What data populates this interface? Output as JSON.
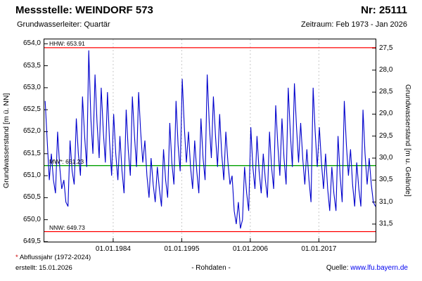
{
  "header": {
    "station_label": "Messstelle: WEINDORF 573",
    "number_label": "Nr: 25111",
    "aquifer_label": "Grundwasserleiter: Quartär",
    "period_label": "Zeitraum: Feb 1973 - Jan 2026"
  },
  "footer": {
    "footnote_star": "*",
    "footnote_text": " Abflussjahr (1972-2024)",
    "created_label": "erstellt: 15.01.2026",
    "center_label": "- Rohdaten -",
    "source_label": "Quelle: ",
    "source_url": "www.lfu.bayern.de"
  },
  "chart_data": {
    "type": "line",
    "title": "",
    "ylabel_left": "Grundwasserstand [m ü. NN]",
    "ylabel_right": "Grundwasserstand [m u. Gelände]",
    "x_range": [
      1972.95,
      2026.1
    ],
    "y_left_range": [
      649.5,
      654.1
    ],
    "right_axis_offset": 681.4,
    "grid": "vertical-only",
    "legend": "none",
    "y_left_ticks": [
      {
        "v": 654.0,
        "label": "654,0"
      },
      {
        "v": 653.5,
        "label": "653,5"
      },
      {
        "v": 653.0,
        "label": "653,0"
      },
      {
        "v": 652.5,
        "label": "652,5"
      },
      {
        "v": 652.0,
        "label": "652,0"
      },
      {
        "v": 651.5,
        "label": "651,5"
      },
      {
        "v": 651.0,
        "label": "651,0"
      },
      {
        "v": 650.5,
        "label": "650,5"
      },
      {
        "v": 650.0,
        "label": "650,0"
      },
      {
        "v": 649.5,
        "label": "649,5"
      }
    ],
    "y_right_ticks": [
      {
        "v": 27.5,
        "label": "27,5"
      },
      {
        "v": 28.0,
        "label": "28,0"
      },
      {
        "v": 28.5,
        "label": "28,5"
      },
      {
        "v": 29.0,
        "label": "29,0"
      },
      {
        "v": 29.5,
        "label": "29,5"
      },
      {
        "v": 30.0,
        "label": "30,0"
      },
      {
        "v": 30.5,
        "label": "30,5"
      },
      {
        "v": 31.0,
        "label": "31,0"
      },
      {
        "v": 31.5,
        "label": "31,5"
      }
    ],
    "x_ticks": [
      {
        "v": 1984.0,
        "label": "01.01.1984"
      },
      {
        "v": 1995.0,
        "label": "01.01.1995"
      },
      {
        "v": 2006.0,
        "label": "01.01.2006"
      },
      {
        "v": 2017.0,
        "label": "01.01.2017"
      }
    ],
    "reference_lines": [
      {
        "name": "HHW",
        "label": "HHW: 653.91",
        "value": 653.91,
        "color": "#ff0000"
      },
      {
        "name": "MW",
        "label": "MW*: 651.23",
        "value": 651.23,
        "color": "#00a000"
      },
      {
        "name": "NNW",
        "label": "NNW: 649.73",
        "value": 649.73,
        "color": "#ff0000"
      }
    ],
    "series": [
      {
        "name": "Grundwasserstand Rohdaten",
        "color": "#0000cc",
        "x_start": 1973.083,
        "x_step": 0.3333,
        "values": [
          652.7,
          651.8,
          650.9,
          651.5,
          650.9,
          650.6,
          652.0,
          651.2,
          650.7,
          650.9,
          650.4,
          650.3,
          651.8,
          651.1,
          650.8,
          652.3,
          651.5,
          651.0,
          652.8,
          651.9,
          651.2,
          653.85,
          652.3,
          651.5,
          653.3,
          652.2,
          651.4,
          653.0,
          652.0,
          651.3,
          652.9,
          651.8,
          651.0,
          652.4,
          651.5,
          650.9,
          651.9,
          651.1,
          650.6,
          652.5,
          651.6,
          651.0,
          652.8,
          651.9,
          651.2,
          652.9,
          652.0,
          651.3,
          651.8,
          651.0,
          650.5,
          651.4,
          650.8,
          650.4,
          651.2,
          650.7,
          650.3,
          651.6,
          650.9,
          650.5,
          652.2,
          651.3,
          650.8,
          652.7,
          651.7,
          651.1,
          653.2,
          652.1,
          651.3,
          652.0,
          651.2,
          650.7,
          651.8,
          651.1,
          650.6,
          652.3,
          651.4,
          650.9,
          653.3,
          652.2,
          651.4,
          652.8,
          651.9,
          651.2,
          652.4,
          651.5,
          650.9,
          652.0,
          651.3,
          650.8,
          651.0,
          650.2,
          649.9,
          650.4,
          649.8,
          650.0,
          651.2,
          650.6,
          650.2,
          652.1,
          651.2,
          650.7,
          651.9,
          651.1,
          650.6,
          651.5,
          650.9,
          650.5,
          652.0,
          651.2,
          650.7,
          652.6,
          651.7,
          651.0,
          652.3,
          651.4,
          650.8,
          653.0,
          652.0,
          651.2,
          653.1,
          652.1,
          651.3,
          652.2,
          651.4,
          650.8,
          651.6,
          650.9,
          650.4,
          653.0,
          652.0,
          651.2,
          652.1,
          651.3,
          650.7,
          651.5,
          650.7,
          650.2,
          651.2,
          650.6,
          650.2,
          651.9,
          651.0,
          650.4,
          652.7,
          651.7,
          651.0,
          651.6,
          650.8,
          650.3,
          651.3,
          650.7,
          650.3,
          652.5,
          651.5,
          650.8,
          651.4,
          650.8,
          650.4,
          650.3
        ]
      }
    ]
  }
}
